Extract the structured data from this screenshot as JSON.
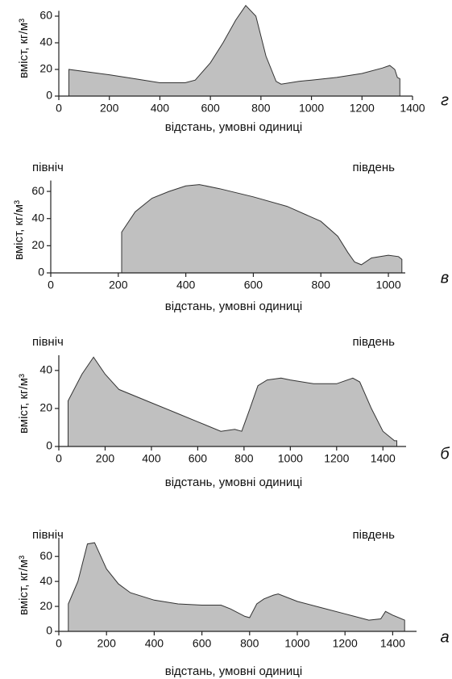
{
  "chart_data": [
    {
      "type": "area",
      "label": "г",
      "color": "#c0c0c0",
      "xlabel": "відстань, умовні одиниці",
      "ylabel": "вміст, кг/м³",
      "xlim": [
        0,
        1400
      ],
      "ylim": [
        0,
        64
      ],
      "xticks": [
        0,
        200,
        400,
        600,
        800,
        1000,
        1200,
        1400
      ],
      "yticks": [
        0,
        20,
        40,
        60
      ],
      "x": [
        40,
        200,
        300,
        400,
        500,
        540,
        600,
        650,
        700,
        740,
        780,
        820,
        860,
        880,
        950,
        1000,
        1100,
        1200,
        1280,
        1310,
        1330,
        1340,
        1350
      ],
      "values": [
        20,
        16,
        13,
        10,
        10,
        12,
        25,
        40,
        57,
        68,
        60,
        30,
        11,
        9,
        11,
        12,
        14,
        17,
        21,
        23,
        20,
        14,
        13
      ]
    },
    {
      "type": "area",
      "label": "в",
      "color": "#c0c0c0",
      "annotations": [
        "північ",
        "південь"
      ],
      "xlabel": "відстань, умовні одиниці",
      "ylabel": "вміст, кг/м³",
      "xlim": [
        0,
        1050
      ],
      "ylim": [
        0,
        68
      ],
      "xticks": [
        0,
        200,
        400,
        600,
        800,
        1000
      ],
      "yticks": [
        0,
        20,
        40,
        60
      ],
      "x": [
        210,
        250,
        300,
        350,
        400,
        440,
        500,
        600,
        700,
        800,
        850,
        880,
        900,
        920,
        950,
        1000,
        1030,
        1040
      ],
      "values": [
        30,
        45,
        55,
        60,
        64,
        65,
        62,
        56,
        49,
        38,
        27,
        15,
        8,
        6,
        11,
        13,
        12,
        10
      ]
    },
    {
      "type": "area",
      "label": "б",
      "color": "#c0c0c0",
      "annotations": [
        "північ",
        "південь"
      ],
      "xlabel": "відстань, умовні одиниці",
      "ylabel": "вміст, кг/м³",
      "xlim": [
        0,
        1500
      ],
      "ylim": [
        0,
        48
      ],
      "xticks": [
        0,
        200,
        400,
        600,
        800,
        1000,
        1200,
        1400
      ],
      "yticks": [
        0,
        20,
        40
      ],
      "x": [
        40,
        100,
        150,
        200,
        260,
        400,
        500,
        600,
        700,
        760,
        790,
        820,
        860,
        900,
        960,
        1000,
        1100,
        1200,
        1270,
        1300,
        1350,
        1400,
        1450,
        1460
      ],
      "values": [
        24,
        38,
        47,
        38,
        30,
        23,
        18,
        13,
        8,
        9,
        8,
        18,
        32,
        35,
        36,
        35,
        33,
        33,
        36,
        34,
        20,
        8,
        3,
        3
      ]
    },
    {
      "type": "area",
      "label": "а",
      "color": "#c0c0c0",
      "annotations": [
        "північ",
        "південь"
      ],
      "xlabel": "відстань, умовні одиниці",
      "ylabel": "вміст, кг/м³",
      "xlim": [
        0,
        1500
      ],
      "ylim": [
        0,
        75
      ],
      "xticks": [
        0,
        200,
        400,
        600,
        800,
        1000,
        1200,
        1400
      ],
      "yticks": [
        0,
        20,
        40,
        60
      ],
      "x": [
        40,
        80,
        120,
        150,
        200,
        250,
        300,
        400,
        500,
        600,
        680,
        720,
        780,
        800,
        830,
        860,
        900,
        920,
        1000,
        1100,
        1200,
        1300,
        1350,
        1370,
        1400,
        1450
      ],
      "values": [
        22,
        40,
        70,
        71,
        50,
        38,
        31,
        25,
        22,
        21,
        21,
        18,
        12,
        11,
        22,
        26,
        29,
        30,
        24,
        19,
        14,
        9,
        10,
        16,
        13,
        9
      ]
    }
  ]
}
